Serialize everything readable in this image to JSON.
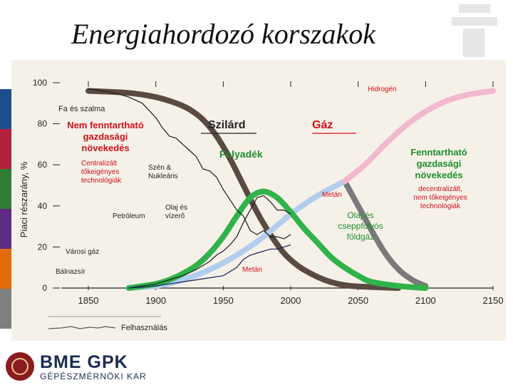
{
  "slide": {
    "title": "Energiahordozó korszakok",
    "logo_main": "BME GPK",
    "logo_sub": "GÉPÉSZMÉRNÖKI KAR"
  },
  "colors": {
    "sidebar": [
      "#1f4e8c",
      "#b2213a",
      "#2e7d32",
      "#5e2a84",
      "#e36c0a",
      "#7f7f7f"
    ],
    "solid": "#5a4a42",
    "liquid": "#2fb34a",
    "gas_rising": "#b3cdef",
    "hydrogen": "#f2b8cf",
    "gas_falling": "#7a7a7a",
    "red_label": "#d0101b",
    "green_label": "#1e8f2e",
    "chart_bg": "#f6f1e8"
  },
  "chart_data": {
    "type": "line",
    "ylabel": "Piaci részarány, %",
    "xlim": [
      1850,
      2150
    ],
    "ylim": [
      0,
      100
    ],
    "x_ticks": [
      "1850",
      "1900",
      "1950",
      "2000",
      "2050",
      "2100",
      "2150"
    ],
    "y_ticks": [
      "100",
      "80",
      "60",
      "40",
      "20",
      "0"
    ],
    "series": [
      {
        "key": "solid",
        "x": [
          1850,
          1880,
          1900,
          1915,
          1925,
          1935,
          1945,
          1955,
          1965,
          1975,
          1985,
          1995,
          2005,
          2015,
          2025,
          2035,
          2045,
          2060,
          2080
        ],
        "values": [
          96,
          95,
          93,
          90,
          87,
          82,
          74,
          63,
          50,
          37,
          26,
          17,
          11,
          7,
          4,
          2,
          1,
          0.5,
          0
        ]
      },
      {
        "key": "liquid",
        "x": [
          1880,
          1900,
          1910,
          1920,
          1930,
          1940,
          1950,
          1960,
          1970,
          1980,
          1990,
          2000,
          2010,
          2020,
          2030,
          2040,
          2050,
          2060,
          2080,
          2100
        ],
        "values": [
          0,
          2,
          4,
          7,
          11,
          17,
          25,
          35,
          44,
          47,
          44,
          37,
          29,
          22,
          15,
          10,
          6,
          3,
          1,
          0
        ]
      },
      {
        "key": "gas_rising",
        "x": [
          1880,
          1900,
          1920,
          1940,
          1960,
          1980,
          2000,
          2020,
          2040
        ],
        "values": [
          0,
          1,
          4,
          9,
          16,
          25,
          36,
          45,
          52
        ]
      },
      {
        "key": "hydrogen",
        "x": [
          2040,
          2055,
          2070,
          2085,
          2100,
          2115,
          2130,
          2150
        ],
        "values": [
          52,
          60,
          70,
          79,
          86,
          91,
          94,
          96
        ]
      },
      {
        "key": "gas_falling",
        "x": [
          2040,
          2050,
          2060,
          2070,
          2080,
          2090,
          2100
        ],
        "values": [
          52,
          40,
          28,
          17,
          9,
          4,
          1
        ]
      },
      {
        "key": "hist_solid",
        "x": [
          1850,
          1860,
          1870,
          1880,
          1890,
          1900,
          1905,
          1910,
          1915,
          1920,
          1925,
          1930,
          1935,
          1940,
          1945,
          1950,
          1955,
          1960,
          1965,
          1970,
          1975,
          1980,
          1985,
          1990,
          1995,
          2000
        ],
        "values": [
          97,
          96,
          95,
          93,
          90,
          83,
          78,
          74,
          73,
          70,
          67,
          64,
          58,
          57,
          54,
          48,
          43,
          38,
          35,
          28,
          26,
          28,
          25,
          25,
          24,
          26
        ]
      },
      {
        "key": "hist_liquid",
        "x": [
          1880,
          1900,
          1910,
          1920,
          1930,
          1940,
          1945,
          1950,
          1955,
          1960,
          1965,
          1970,
          1975,
          1980,
          1985,
          1990,
          1995,
          2000
        ],
        "values": [
          0,
          2,
          4,
          6,
          9,
          13,
          16,
          18,
          21,
          25,
          32,
          38,
          44,
          45,
          42,
          38,
          38,
          36
        ]
      },
      {
        "key": "hist_gas",
        "x": [
          1880,
          1900,
          1910,
          1920,
          1930,
          1940,
          1950,
          1960,
          1965,
          1970,
          1975,
          1980,
          1985,
          1990,
          1995,
          2000
        ],
        "values": [
          0,
          1,
          2,
          3,
          4,
          5,
          6,
          10,
          14,
          16,
          17,
          18,
          19,
          19,
          20,
          21
        ]
      }
    ],
    "annotations": {
      "fa_szalma": "Fa és szalma",
      "nem_fenntarthato": "Nem fenntartható\ngazdasági\nnövekedés",
      "centralizalt": "Centralizált\ntőkeigényes\ntechnológiák",
      "szilard": "Szilárd",
      "gaz": "Gáz",
      "folyadek": "Folyadék",
      "szen_nuklearis": "Szén &\nNukleáris",
      "hidrogen": "Hidrogén",
      "fenntarthato": "Fenntartható\ngazdasági\nnövekedés",
      "decentralizalt": "decentralizált,\nnem tőkeigényes\ntechnológiák",
      "metan_upper": "Metán",
      "metan_lower": "Metán",
      "olaj_vizero": "Olaj és\nvízerő",
      "petroleum": "Petróleum",
      "olaj_cseppfolyos": "Olaj és\ncseppfolyós\nföldgáz",
      "varosi_gaz": "Városi gáz",
      "balnazsir": "Bálnazsír"
    },
    "legend": {
      "label": "Felhasználás",
      "placement": "bottom-left"
    }
  }
}
